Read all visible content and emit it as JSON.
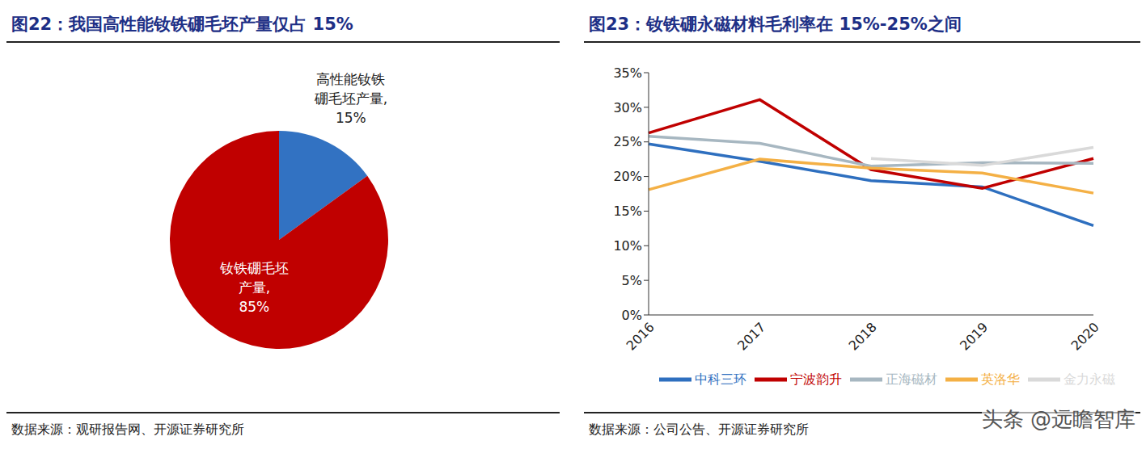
{
  "chart_data": [
    {
      "type": "pie",
      "title": "图22：我国高性能钕铁硼毛坯产量仅占 15%",
      "categories": [
        "高性能钕铁硼毛坯产量",
        "钕铁硼毛坯产量"
      ],
      "values": [
        15,
        85
      ],
      "value_labels": [
        "高性能钕铁硼毛坯产量, 15%",
        "钕铁硼毛坯产量, 85%"
      ],
      "colors": [
        "#3272c2",
        "#c00000"
      ],
      "data_labels": true,
      "source": "数据来源：观研报告网、开源证券研究所"
    },
    {
      "type": "line",
      "title": "图23：钕铁硼永磁材料毛利率在 15%-25%之间",
      "categories": [
        "2016",
        "2017",
        "2018",
        "2019",
        "2020"
      ],
      "series": [
        {
          "name": "中科三环",
          "color": "#2e6fbf",
          "values": [
            24.7,
            22.2,
            19.4,
            18.5,
            12.9
          ]
        },
        {
          "name": "宁波韵升",
          "color": "#c00000",
          "values": [
            26.3,
            31.1,
            21.0,
            18.3,
            22.6
          ]
        },
        {
          "name": "正海磁材",
          "color": "#a7b7c1",
          "values": [
            25.8,
            24.8,
            21.5,
            22.0,
            21.9
          ]
        },
        {
          "name": "英洛华",
          "color": "#f4b045",
          "values": [
            18.1,
            22.5,
            21.2,
            20.5,
            17.6
          ]
        },
        {
          "name": "金力永磁",
          "color": "#d9d9d9",
          "values": [
            null,
            null,
            22.6,
            21.6,
            24.2
          ]
        }
      ],
      "ylim": [
        0,
        35
      ],
      "yticks": [
        {
          "value": 0,
          "label": "0%"
        },
        {
          "value": 5,
          "label": "5%"
        },
        {
          "value": 10,
          "label": "10%"
        },
        {
          "value": 15,
          "label": "15%"
        },
        {
          "value": 20,
          "label": "20%"
        },
        {
          "value": 25,
          "label": "25%"
        },
        {
          "value": 30,
          "label": "30%"
        },
        {
          "value": 35,
          "label": "35%"
        }
      ],
      "grid": false,
      "legend": "bottom",
      "source": "数据来源：公司公告、开源证券研究所",
      "annotations": [
        "头条 @远瞻智库"
      ]
    }
  ]
}
